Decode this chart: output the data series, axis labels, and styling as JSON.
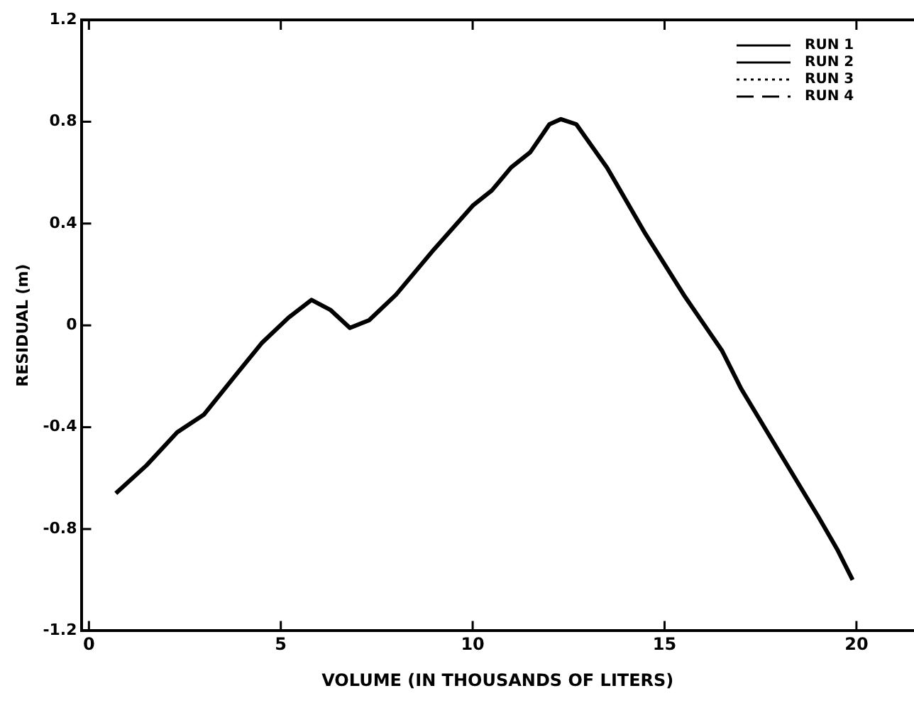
{
  "chart_data": {
    "type": "line",
    "xlabel": "VOLUME (IN THOUSANDS OF LITERS)",
    "ylabel": "RESIDUAL (m)",
    "x": [
      0.7,
      1.5,
      2.3,
      3,
      3.8,
      4.5,
      5.2,
      5.8,
      6.3,
      6.8,
      7.3,
      8,
      9,
      10,
      10.5,
      11,
      11.5,
      12,
      12.3,
      12.7,
      13.5,
      14.5,
      15.5,
      16,
      16.5,
      17,
      18,
      19,
      19.5,
      19.9
    ],
    "series": [
      {
        "name": "RUN 1",
        "color": "#000000",
        "line_style": "solid",
        "values": [
          -0.66,
          -0.55,
          -0.42,
          -0.35,
          -0.2,
          -0.07,
          0.03,
          0.1,
          0.06,
          -0.01,
          0.02,
          0.12,
          0.3,
          0.47,
          0.53,
          0.62,
          0.68,
          0.79,
          0.81,
          0.79,
          0.62,
          0.36,
          0.12,
          0.01,
          -0.1,
          -0.25,
          -0.5,
          -0.75,
          -0.88,
          -1.0
        ]
      },
      {
        "name": "RUN 2",
        "color": "#000000",
        "line_style": "solid",
        "values": [
          null,
          null,
          null,
          null,
          null,
          null,
          null,
          null,
          null,
          null,
          null,
          null,
          null,
          null,
          null,
          null,
          null,
          null,
          null,
          null,
          null,
          null,
          null,
          null,
          null,
          null,
          null,
          null,
          null,
          null
        ]
      },
      {
        "name": "RUN 3",
        "color": "#000000",
        "line_style": "dotted",
        "values": [
          null,
          null,
          null,
          null,
          null,
          null,
          null,
          null,
          null,
          null,
          null,
          null,
          null,
          null,
          null,
          null,
          null,
          null,
          null,
          null,
          null,
          null,
          null,
          null,
          null,
          null,
          null,
          null,
          null,
          null
        ]
      },
      {
        "name": "RUN 4",
        "color": "#000000",
        "line_style": "dashed",
        "values": [
          null,
          null,
          null,
          null,
          null,
          null,
          null,
          null,
          null,
          null,
          null,
          null,
          null,
          null,
          null,
          null,
          null,
          null,
          null,
          null,
          null,
          null,
          null,
          null,
          null,
          null,
          null,
          null,
          null,
          null
        ]
      }
    ],
    "xlim": [
      -0.2,
      21.5
    ],
    "xticks": [
      0,
      5,
      10,
      15,
      20
    ],
    "ylim": [
      -1.2,
      1.2
    ],
    "yticks": [
      -1.2,
      -0.8,
      -0.4,
      0,
      0.4,
      0.8,
      1.2
    ],
    "grid": false,
    "legend": "top right",
    "marker": "none"
  }
}
